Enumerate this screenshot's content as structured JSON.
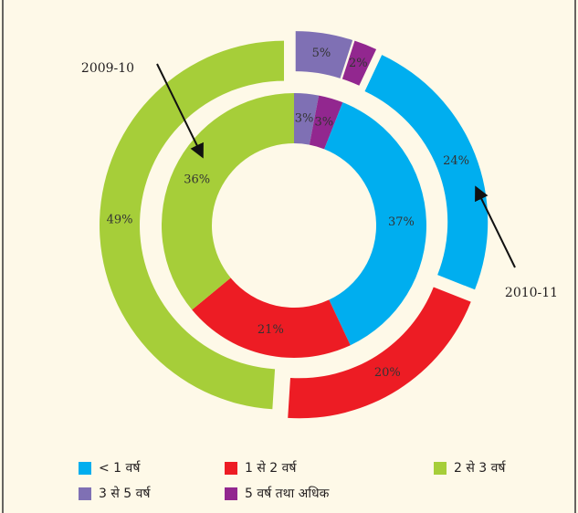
{
  "chart_data": {
    "type": "donut",
    "categories": [
      "< 1 वर्ष",
      "1 से 2 वर्ष",
      "2 से 3 वर्ष",
      "3 से 5 वर्ष",
      "5 वर्ष तथा अधिक"
    ],
    "colors": [
      "#00aeef",
      "#ed1c24",
      "#a6ce39",
      "#7f70b4",
      "#92278f"
    ],
    "series": [
      {
        "name": "2009-10",
        "values": [
          37,
          21,
          36,
          3,
          3
        ],
        "value_labels": [
          "37%",
          "21%",
          "36%",
          "3%",
          "3%"
        ]
      },
      {
        "name": "2010-11",
        "values": [
          24,
          20,
          49,
          5,
          2
        ],
        "value_labels": [
          "24%",
          "20%",
          "49%",
          "5%",
          "2%"
        ]
      }
    ]
  }
}
